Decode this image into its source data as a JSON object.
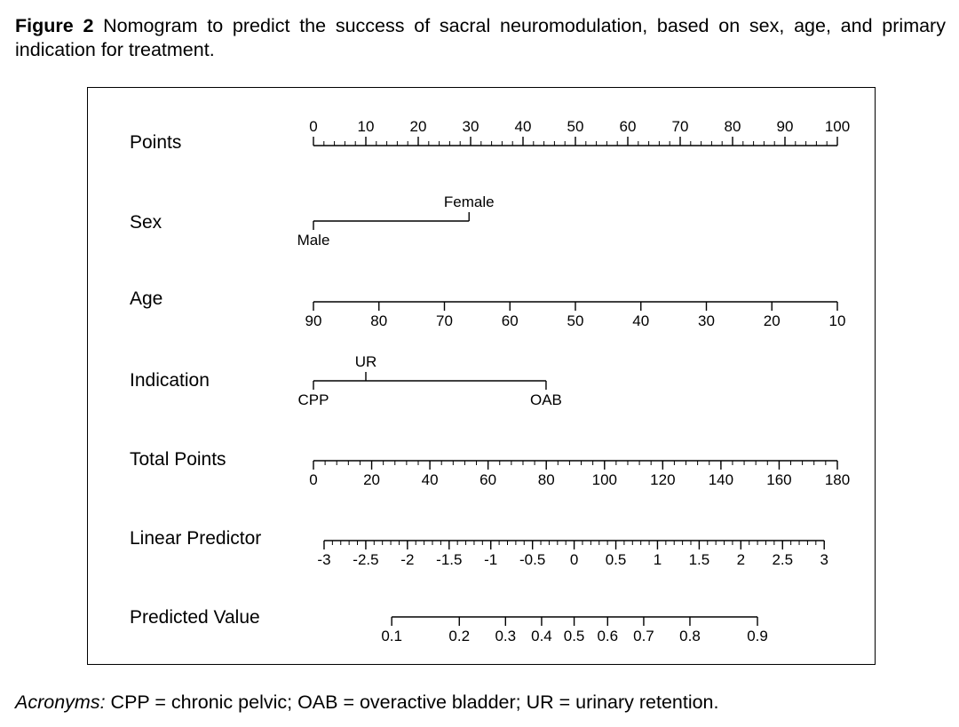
{
  "caption": {
    "label": "Figure 2",
    "text": "Nomogram to predict the success of sacral neuromodulation, based on sex, age, and primary indication for treatment."
  },
  "footnote": {
    "label": "Acronyms:",
    "text": "CPP = chronic pelvic; OAB = overactive bladder; UR = urinary retention."
  },
  "chart_data": {
    "type": "nomogram",
    "points_scale": [
      0,
      100
    ],
    "rows": [
      {
        "name": "Points",
        "kind": "numeric",
        "ticks": [
          {
            "label": "0",
            "points": 0
          },
          {
            "label": "10",
            "points": 10
          },
          {
            "label": "20",
            "points": 20
          },
          {
            "label": "30",
            "points": 30
          },
          {
            "label": "40",
            "points": 40
          },
          {
            "label": "50",
            "points": 50
          },
          {
            "label": "60",
            "points": 60
          },
          {
            "label": "70",
            "points": 70
          },
          {
            "label": "80",
            "points": 80
          },
          {
            "label": "90",
            "points": 90
          },
          {
            "label": "100",
            "points": 100
          }
        ],
        "minor_step": 2,
        "label_side": "above"
      },
      {
        "name": "Sex",
        "kind": "categorical",
        "ticks": [
          {
            "label": "Male",
            "points": 0,
            "side": "below"
          },
          {
            "label": "Female",
            "points": 29.7,
            "side": "above"
          }
        ]
      },
      {
        "name": "Age",
        "kind": "numeric",
        "ticks": [
          {
            "label": "90",
            "points": 0
          },
          {
            "label": "80",
            "points": 12.5
          },
          {
            "label": "70",
            "points": 25
          },
          {
            "label": "60",
            "points": 37.5
          },
          {
            "label": "50",
            "points": 50
          },
          {
            "label": "40",
            "points": 62.5
          },
          {
            "label": "30",
            "points": 75
          },
          {
            "label": "20",
            "points": 87.5
          },
          {
            "label": "10",
            "points": 100
          }
        ],
        "label_side": "below"
      },
      {
        "name": "Indication",
        "kind": "categorical",
        "ticks": [
          {
            "label": "CPP",
            "points": 0,
            "side": "below"
          },
          {
            "label": "UR",
            "points": 10,
            "side": "above"
          },
          {
            "label": "OAB",
            "points": 44.4,
            "side": "below"
          }
        ]
      },
      {
        "name": "Total Points",
        "kind": "numeric",
        "ticks": [
          {
            "label": "0",
            "points": 0
          },
          {
            "label": "20",
            "points": 11.11
          },
          {
            "label": "40",
            "points": 22.22
          },
          {
            "label": "60",
            "points": 33.33
          },
          {
            "label": "80",
            "points": 44.44
          },
          {
            "label": "100",
            "points": 55.56
          },
          {
            "label": "120",
            "points": 66.67
          },
          {
            "label": "140",
            "points": 77.78
          },
          {
            "label": "160",
            "points": 88.89
          },
          {
            "label": "180",
            "points": 100
          }
        ],
        "minor_step": 2.222,
        "label_side": "below"
      },
      {
        "name": "Linear Predictor",
        "kind": "numeric",
        "ticks": [
          {
            "label": "-3",
            "points": 2.03
          },
          {
            "label": "-2.5",
            "points": 9.99
          },
          {
            "label": "-2",
            "points": 17.94
          },
          {
            "label": "-1.5",
            "points": 25.9
          },
          {
            "label": "-1",
            "points": 33.85
          },
          {
            "label": "-0.5",
            "points": 41.81
          },
          {
            "label": "0",
            "points": 49.76
          },
          {
            "label": "0.5",
            "points": 57.72
          },
          {
            "label": "1",
            "points": 65.67
          },
          {
            "label": "1.5",
            "points": 73.63
          },
          {
            "label": "2",
            "points": 81.58
          },
          {
            "label": "2.5",
            "points": 89.54
          },
          {
            "label": "3",
            "points": 97.49
          }
        ],
        "minor_step": 1.591,
        "label_side": "below"
      },
      {
        "name": "Predicted Value",
        "kind": "numeric",
        "ticks": [
          {
            "label": "0.1",
            "points": 14.94
          },
          {
            "label": "0.2",
            "points": 27.84
          },
          {
            "label": "0.3",
            "points": 36.66
          },
          {
            "label": "0.4",
            "points": 43.55
          },
          {
            "label": "0.5",
            "points": 49.76
          },
          {
            "label": "0.6",
            "points": 56.15
          },
          {
            "label": "0.7",
            "points": 63.04
          },
          {
            "label": "0.8",
            "points": 71.86
          },
          {
            "label": "0.9",
            "points": 84.75
          }
        ],
        "label_side": "below"
      }
    ]
  }
}
